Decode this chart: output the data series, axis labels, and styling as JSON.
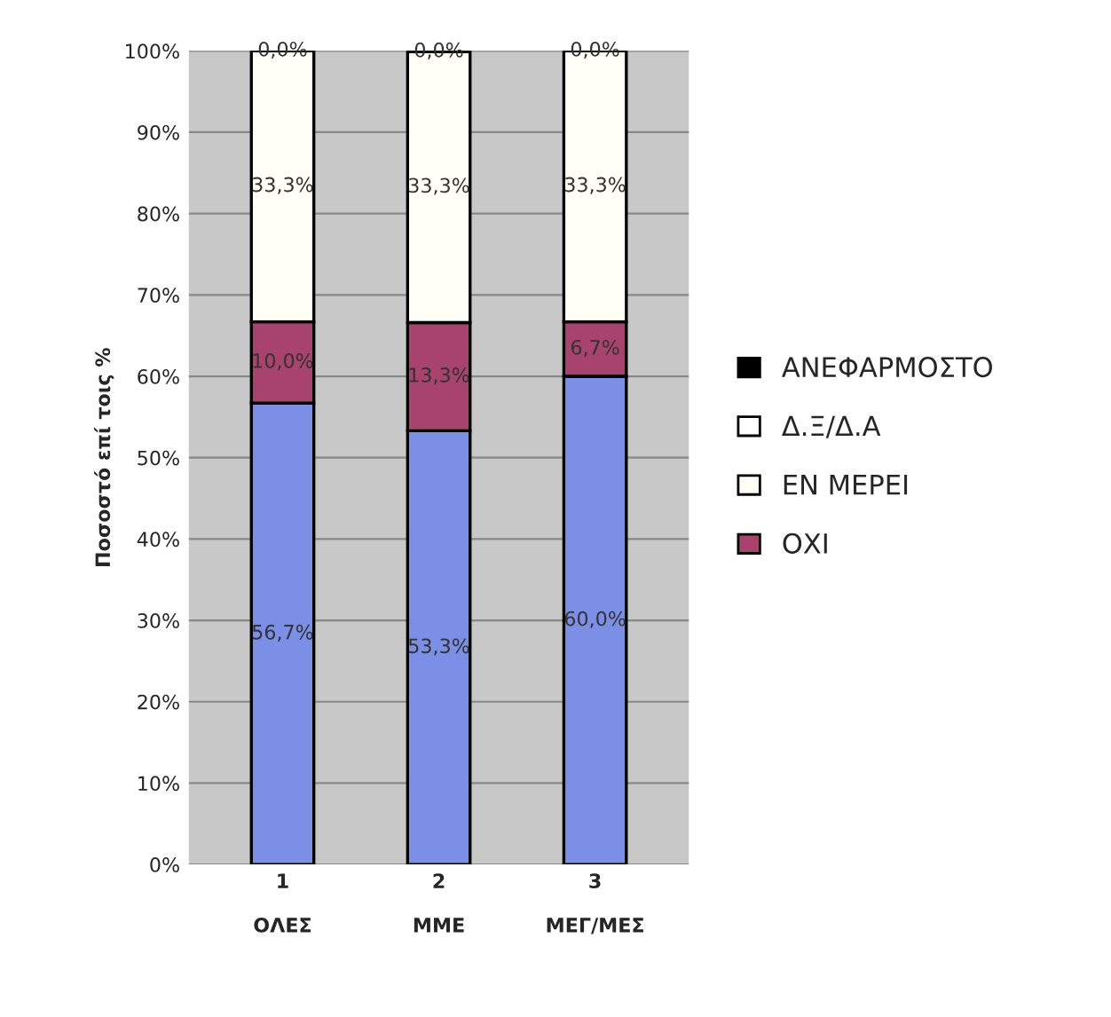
{
  "chart_data": {
    "type": "bar",
    "stacked": true,
    "ylabel": "Ποσοστό επί τοις %",
    "categories": [
      "1\n\nΟΛΕΣ",
      "2\n\nΜΜΕ",
      "3\n\nΜΕΓ/ΜΕΣ"
    ],
    "series": [
      {
        "color": "#7b8fe6",
        "values": [
          56.7,
          53.3,
          60.0
        ],
        "value_labels": [
          "56,7%",
          "53,3%",
          "60,0%"
        ]
      },
      {
        "name": "ΟΧΙ",
        "color": "#a8436e",
        "values": [
          10.0,
          13.3,
          6.7
        ],
        "value_labels": [
          "10,0%",
          "13,3%",
          "6,7%"
        ]
      },
      {
        "name": "ΕΝ ΜΕΡΕΙ",
        "color": "#fffff5",
        "values": [
          33.3,
          33.3,
          33.3
        ],
        "value_labels": [
          "33,3%",
          "33,3%",
          "33,3%"
        ]
      },
      {
        "name": "Δ.Ξ/Δ.Α",
        "color": "#ffffff",
        "values": [
          0.0,
          0.0,
          0.0
        ],
        "value_labels": [
          "0,0%",
          "0,0%",
          "0,0%"
        ]
      },
      {
        "name": "ΑΝΕΦΑΡΜΟΣΤΟ",
        "color": "#000000",
        "values": [
          0.0,
          0.0,
          0.0
        ]
      }
    ],
    "ylim": [
      0,
      100
    ],
    "yticks": [
      {
        "value": 0,
        "label": "0%"
      },
      {
        "value": 10,
        "label": "10%"
      },
      {
        "value": 20,
        "label": "20%"
      },
      {
        "value": 30,
        "label": "30%"
      },
      {
        "value": 40,
        "label": "40%"
      },
      {
        "value": 50,
        "label": "50%"
      },
      {
        "value": 60,
        "label": "60%"
      },
      {
        "value": 70,
        "label": "70%"
      },
      {
        "value": 80,
        "label": "80%"
      },
      {
        "value": 90,
        "label": "90%"
      },
      {
        "value": 100,
        "label": "100%"
      }
    ],
    "grid": "y",
    "legend": "right"
  }
}
